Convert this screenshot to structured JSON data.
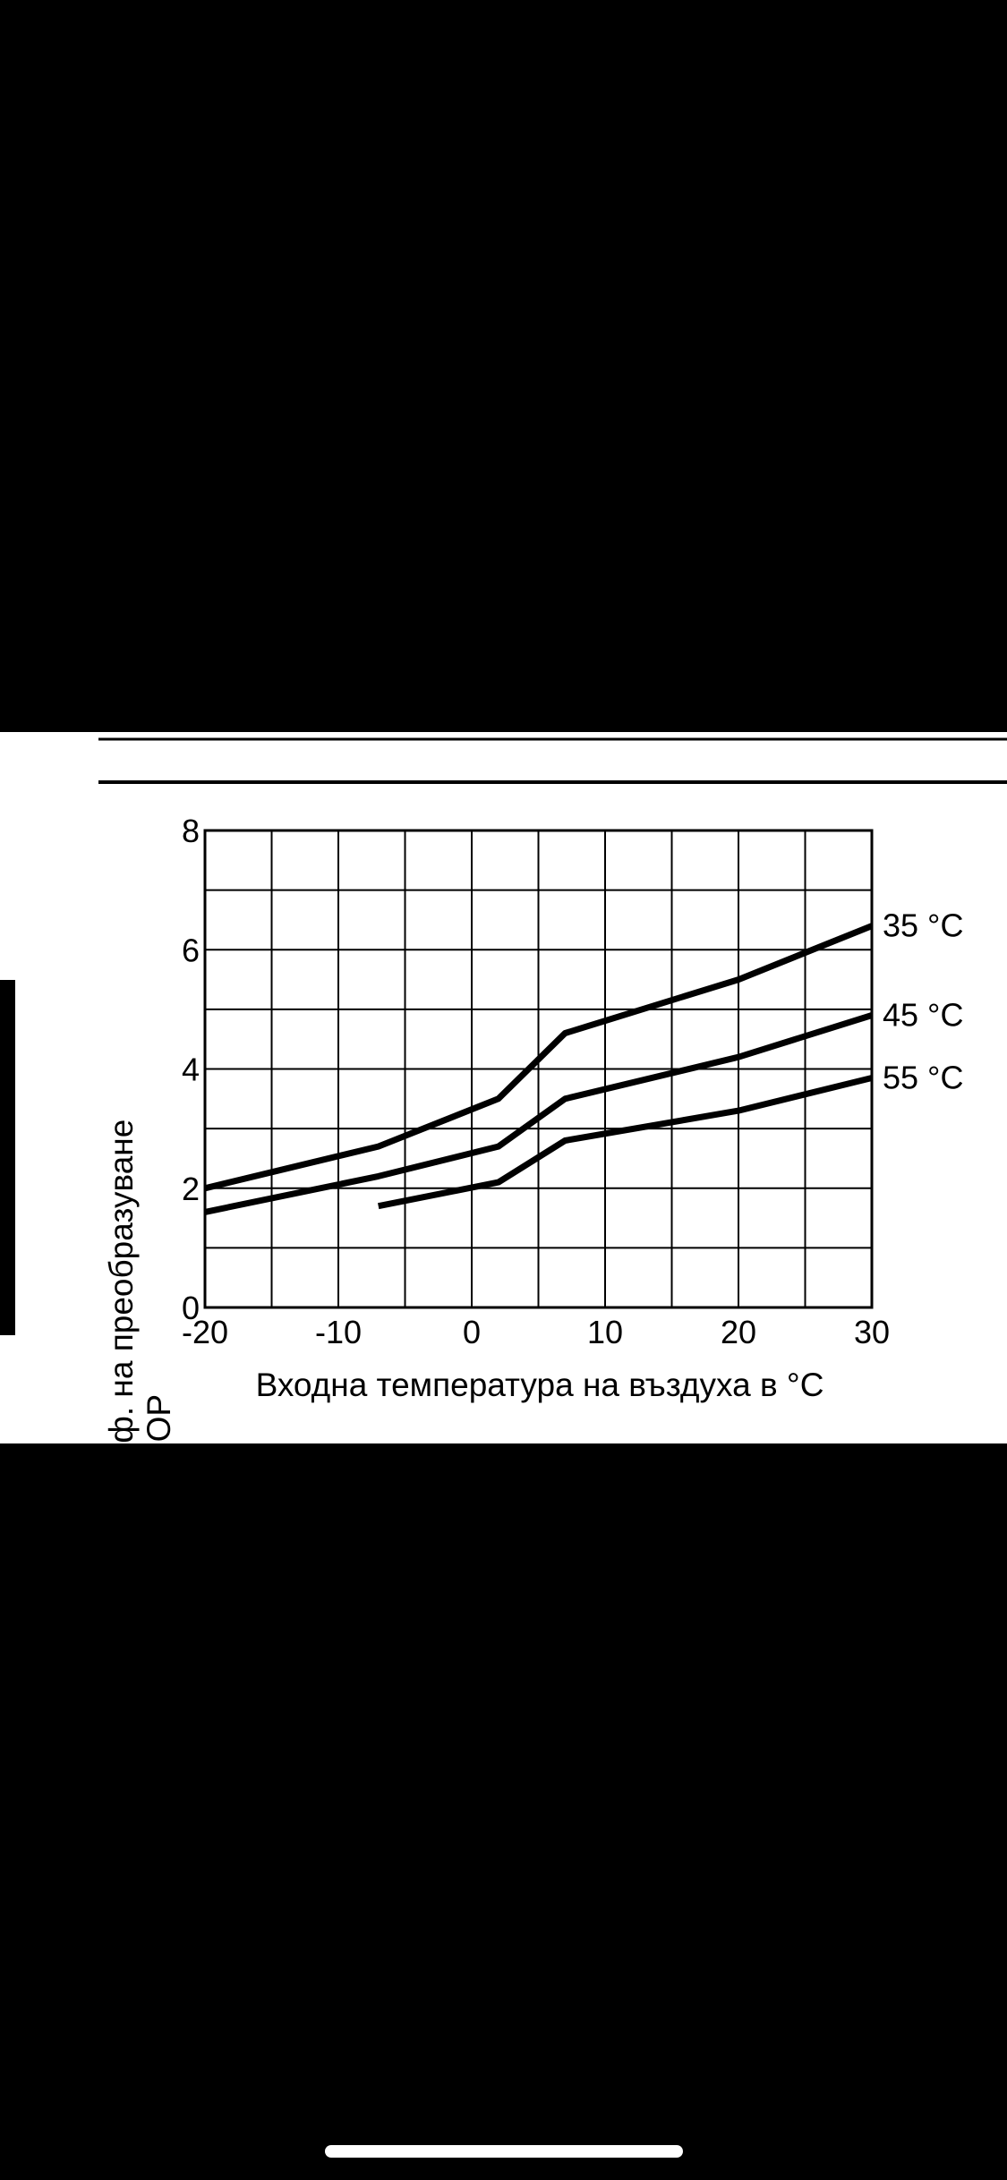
{
  "colors": {
    "background": "#000000",
    "panel": "#ffffff",
    "ink": "#000000",
    "home_indicator": "#ffffff"
  },
  "chart_data": {
    "type": "line",
    "title": "",
    "xlabel": "Входна температура на въздуха в °C",
    "ylabel_lines": [
      "Коеф. на преобразуване",
      "COP"
    ],
    "xlim": [
      -20,
      30
    ],
    "ylim": [
      0,
      8
    ],
    "x_ticks": [
      -20,
      -10,
      0,
      10,
      20,
      30
    ],
    "x_tick_labels": [
      "-20",
      "-10",
      "0",
      "10",
      "20",
      "30"
    ],
    "y_ticks": [
      0,
      2,
      4,
      6,
      8
    ],
    "y_tick_labels": [
      "0",
      "2",
      "4",
      "6",
      "8"
    ],
    "grid": true,
    "x_grid_step": 5,
    "y_grid_step": 1,
    "legend": "inline-right",
    "series": [
      {
        "name": "35 °C",
        "points": [
          [
            -20,
            2.0
          ],
          [
            -7,
            2.7
          ],
          [
            2,
            3.5
          ],
          [
            7,
            4.6
          ],
          [
            20,
            5.5
          ],
          [
            30,
            6.4
          ]
        ]
      },
      {
        "name": "45 °C",
        "points": [
          [
            -20,
            1.6
          ],
          [
            -7,
            2.2
          ],
          [
            2,
            2.7
          ],
          [
            7,
            3.5
          ],
          [
            20,
            4.2
          ],
          [
            30,
            4.9
          ]
        ]
      },
      {
        "name": "55 °C",
        "points": [
          [
            -7,
            1.7
          ],
          [
            2,
            2.1
          ],
          [
            7,
            2.8
          ],
          [
            20,
            3.3
          ],
          [
            30,
            3.85
          ]
        ]
      }
    ]
  }
}
